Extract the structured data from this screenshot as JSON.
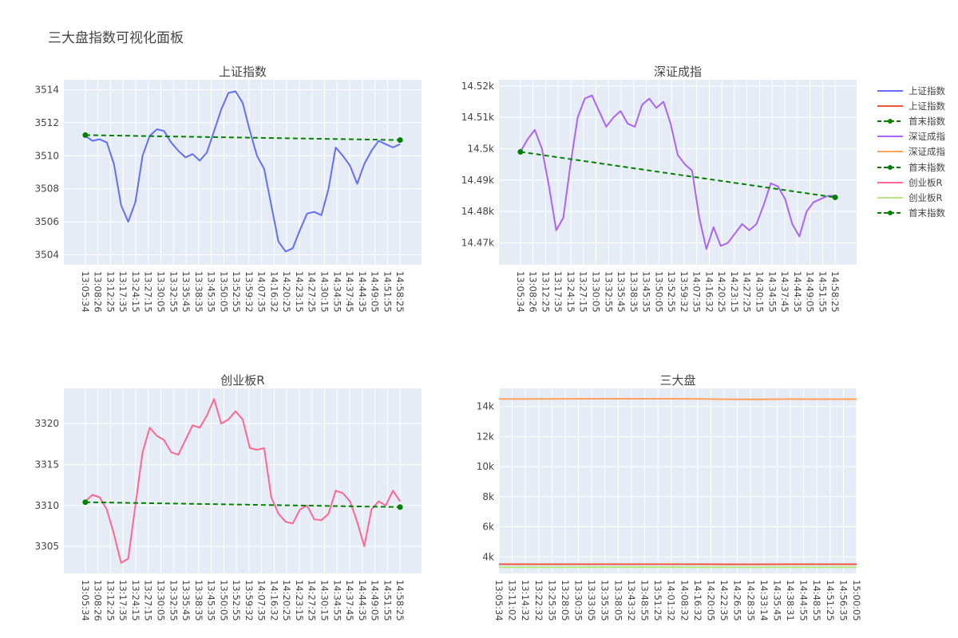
{
  "page": {
    "title": "三大盘指数可视化面板"
  },
  "legend": [
    {
      "label": "上证指数",
      "color": "#636efa",
      "style": "line"
    },
    {
      "label": "上证指数",
      "color": "#ef553b",
      "style": "line"
    },
    {
      "label": "首末指数",
      "color": "#008000",
      "style": "dash-marker"
    },
    {
      "label": "深证成指",
      "color": "#ab63fa",
      "style": "line"
    },
    {
      "label": "深证成指",
      "color": "#ffa15a",
      "style": "line"
    },
    {
      "label": "首末指数",
      "color": "#008000",
      "style": "dash-marker"
    },
    {
      "label": "创业板R",
      "color": "#ff6692",
      "style": "line"
    },
    {
      "label": "创业板R",
      "color": "#b6e880",
      "style": "line"
    },
    {
      "label": "首末指数",
      "color": "#008000",
      "style": "dash-marker"
    }
  ],
  "chart_data": [
    {
      "type": "line",
      "title": "上证指数",
      "xlabel": "",
      "ylabel": "",
      "ylim": [
        3503.4,
        3514.6
      ],
      "yticks": [
        3504,
        3506,
        3508,
        3510,
        3512,
        3514
      ],
      "x_ticklabels": [
        "13:05:34",
        "13:08:26",
        "13:12:25",
        "13:17:35",
        "13:24:15",
        "13:27:15",
        "13:30:05",
        "13:32:55",
        "13:35:45",
        "13:38:35",
        "13:45:35",
        "13:50:05",
        "13:52:55",
        "13:59:32",
        "14:07:35",
        "14:16:32",
        "14:20:25",
        "14:23:15",
        "14:27:25",
        "14:30:15",
        "14:34:55",
        "14:37:45",
        "14:44:35",
        "14:49:05",
        "14:51:55",
        "14:58:25"
      ],
      "series": [
        {
          "name": "上证指数",
          "color": "#636efa",
          "values": [
            3511.2,
            3510.9,
            3511.0,
            3510.8,
            3509.5,
            3507.0,
            3506.0,
            3507.2,
            3510.0,
            3511.2,
            3511.6,
            3511.5,
            3510.8,
            3510.3,
            3509.9,
            3510.1,
            3509.7,
            3510.2,
            3511.5,
            3512.8,
            3513.8,
            3513.9,
            3513.2,
            3511.5,
            3510.0,
            3509.2,
            3507.0,
            3504.8,
            3504.2,
            3504.4,
            3505.5,
            3506.5,
            3506.6,
            3506.4,
            3508.0,
            3510.5,
            3510.0,
            3509.4,
            3508.3,
            3509.5,
            3510.3,
            3510.9,
            3510.7,
            3510.5,
            3510.7
          ]
        },
        {
          "name": "首末指数",
          "color": "#008000",
          "dashed": true,
          "markers": true,
          "values": [
            3511.25,
            3510.95
          ]
        }
      ]
    },
    {
      "type": "line",
      "title": "深证成指",
      "xlabel": "",
      "ylabel": "",
      "ylim": [
        14463,
        14522
      ],
      "yticks": [
        14470,
        14480,
        14490,
        14500,
        14510,
        14520
      ],
      "ytick_labels": [
        "14.47k",
        "14.48k",
        "14.49k",
        "14.5k",
        "14.51k",
        "14.52k"
      ],
      "x_ticklabels": [
        "13:05:34",
        "13:08:26",
        "13:12:25",
        "13:17:35",
        "13:24:15",
        "13:27:15",
        "13:30:05",
        "13:32:55",
        "13:35:45",
        "13:38:35",
        "13:45:35",
        "13:50:05",
        "13:52:55",
        "13:59:32",
        "14:07:35",
        "14:16:32",
        "14:20:25",
        "14:23:15",
        "14:27:25",
        "14:30:15",
        "14:34:55",
        "14:37:45",
        "14:44:35",
        "14:49:05",
        "14:51:55",
        "14:58:25"
      ],
      "series": [
        {
          "name": "深证成指",
          "color": "#ab63fa",
          "values": [
            14499,
            14503,
            14506,
            14500,
            14488,
            14474,
            14478,
            14495,
            14510,
            14516,
            14517,
            14512,
            14507,
            14510,
            14512,
            14508,
            14507,
            14514,
            14516,
            14513,
            14515,
            14508,
            14498,
            14495,
            14493,
            14478,
            14468,
            14475,
            14469,
            14470,
            14473,
            14476,
            14474,
            14476,
            14482,
            14489,
            14488,
            14484,
            14476,
            14472,
            14480,
            14483,
            14484,
            14485,
            14485
          ]
        },
        {
          "name": "首末指数",
          "color": "#008000",
          "dashed": true,
          "markers": true,
          "values": [
            14499,
            14484.5
          ]
        }
      ]
    },
    {
      "type": "line",
      "title": "创业板R",
      "xlabel": "",
      "ylabel": "",
      "ylim": [
        3301.7,
        3324.3
      ],
      "yticks": [
        3305,
        3310,
        3315,
        3320
      ],
      "x_ticklabels": [
        "13:05:34",
        "13:08:26",
        "13:12:25",
        "13:17:35",
        "13:24:15",
        "13:27:15",
        "13:30:05",
        "13:32:55",
        "13:35:45",
        "13:38:35",
        "13:45:35",
        "13:50:05",
        "13:52:55",
        "13:59:32",
        "14:07:35",
        "14:16:32",
        "14:20:25",
        "14:23:15",
        "14:27:25",
        "14:30:15",
        "14:34:55",
        "14:37:45",
        "14:44:35",
        "14:49:05",
        "14:51:55",
        "14:58:25"
      ],
      "series": [
        {
          "name": "创业板R",
          "color": "#ff6692",
          "values": [
            3310.5,
            3311.3,
            3311.0,
            3309.5,
            3306.5,
            3303.0,
            3303.5,
            3310.0,
            3316.5,
            3319.5,
            3318.5,
            3318.0,
            3316.5,
            3316.2,
            3318.0,
            3319.8,
            3319.5,
            3321.0,
            3323.0,
            3320.0,
            3320.5,
            3321.5,
            3320.5,
            3317.0,
            3316.8,
            3317.0,
            3311.0,
            3309.0,
            3308.0,
            3307.8,
            3309.5,
            3310.0,
            3308.3,
            3308.2,
            3309.0,
            3311.8,
            3311.5,
            3310.5,
            3308.0,
            3305.0,
            3309.5,
            3310.5,
            3310.0,
            3311.8,
            3310.5
          ]
        },
        {
          "name": "首末指数",
          "color": "#008000",
          "dashed": true,
          "markers": true,
          "values": [
            3310.4,
            3309.8
          ]
        }
      ]
    },
    {
      "type": "line",
      "title": "三大盘",
      "xlabel": "",
      "ylabel": "",
      "ylim": [
        2900,
        15200
      ],
      "yticks": [
        4000,
        6000,
        8000,
        10000,
        12000,
        14000
      ],
      "ytick_labels": [
        "4k",
        "6k",
        "8k",
        "10k",
        "12k",
        "14k"
      ],
      "x_ticklabels": [
        "13:05:34",
        "13:11:02",
        "13:14:32",
        "13:22:32",
        "13:25:35",
        "13:28:05",
        "13:30:35",
        "13:33:05",
        "13:35:35",
        "13:38:05",
        "13:43:32",
        "13:48:55",
        "13:51:25",
        "14:01:32",
        "14:08:32",
        "14:16:32",
        "14:20:05",
        "14:22:35",
        "14:26:55",
        "14:28:35",
        "14:33:14",
        "14:35:45",
        "14:38:31",
        "14:44:55",
        "14:48:55",
        "14:51:25",
        "14:56:35",
        "15:00:05"
      ],
      "series": [
        {
          "name": "上证指数",
          "color": "#ef553b",
          "values": [
            3511,
            3511,
            3510,
            3509,
            3510,
            3512,
            3511,
            3506,
            3505,
            3508,
            3510,
            3511
          ]
        },
        {
          "name": "深证成指",
          "color": "#ffa15a",
          "values": [
            14499,
            14500,
            14506,
            14510,
            14509,
            14510,
            14503,
            14480,
            14475,
            14488,
            14482,
            14485
          ]
        },
        {
          "name": "创业板R",
          "color": "#b6e880",
          "values": [
            3310,
            3308,
            3316,
            3318,
            3321,
            3319,
            3312,
            3308,
            3309,
            3310,
            3309,
            3310
          ]
        }
      ]
    }
  ]
}
